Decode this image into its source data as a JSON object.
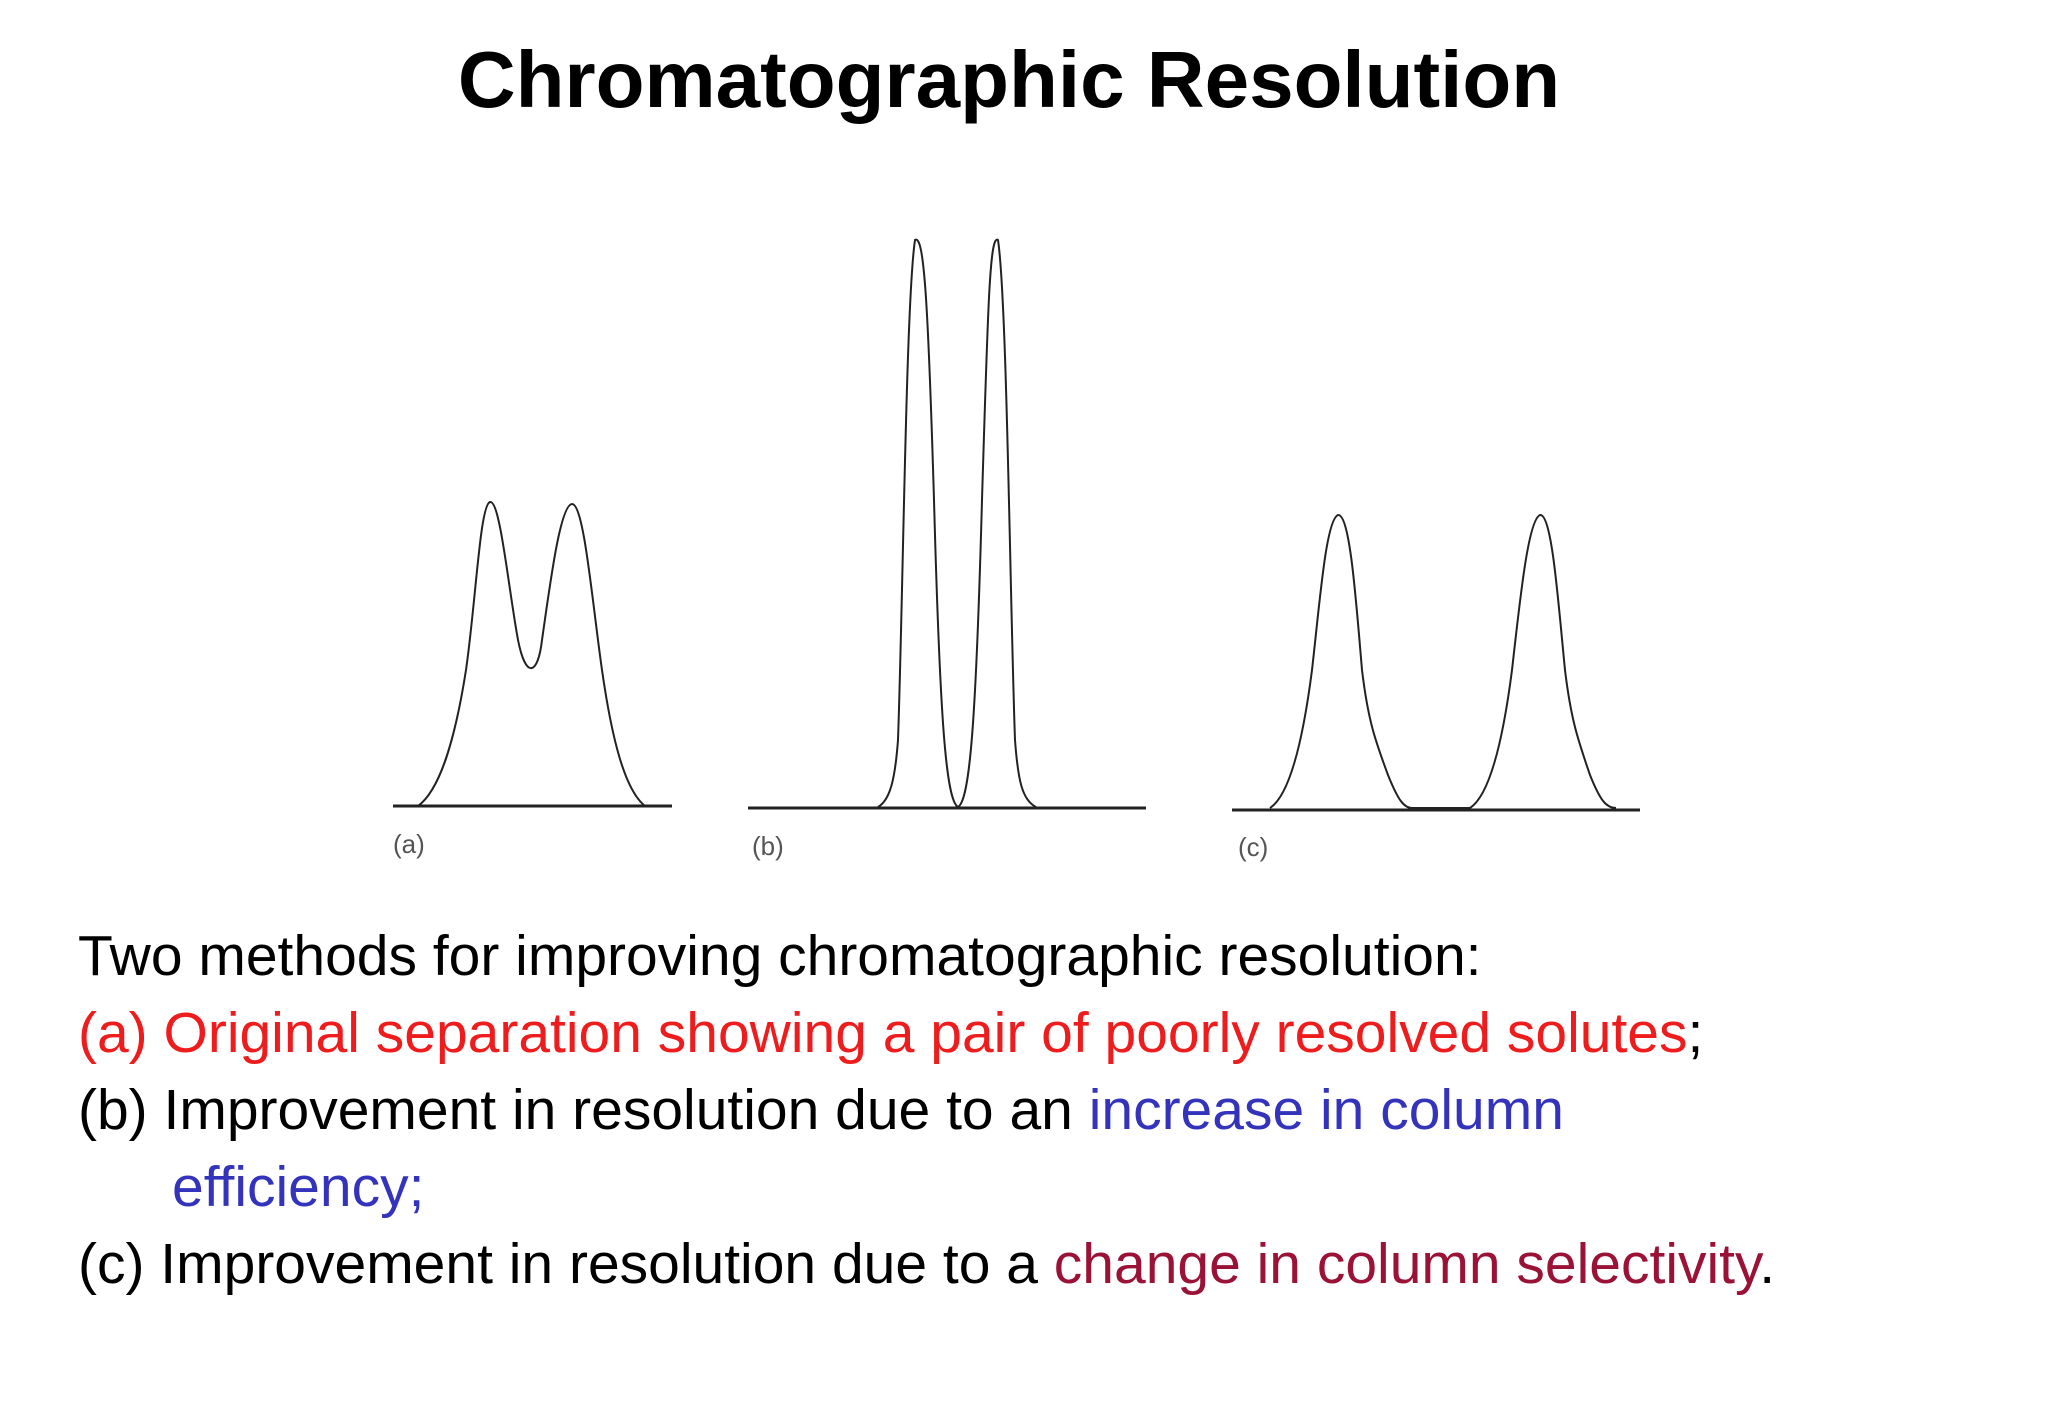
{
  "slide": {
    "title": "Chromatographic Resolution"
  },
  "diagram": {
    "panels": [
      {
        "id": "a",
        "label": "(a)"
      },
      {
        "id": "b",
        "label": "(b)"
      },
      {
        "id": "c",
        "label": "(c)"
      }
    ]
  },
  "caption": {
    "intro": "Two methods for improving chromatographic resolution:",
    "a_text": "(a) Original separation showing a pair of poorly resolved solutes",
    "a_end": ";",
    "b_prefix": "(b) Improvement in resolution due to an ",
    "b_highlight_1": "increase in column",
    "b_highlight_2": "efficiency;",
    "c_prefix": "(c) Improvement in resolution due to a ",
    "c_highlight": "change in column selectivity",
    "c_end": "."
  },
  "colors": {
    "red": "#ee1c1c",
    "blue": "#3333bb",
    "maroon": "#9b1237"
  }
}
